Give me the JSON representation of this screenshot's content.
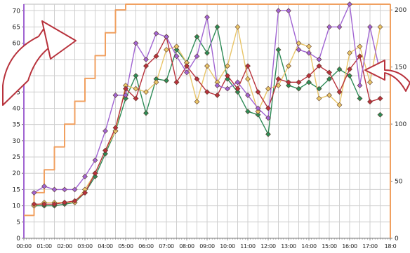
{
  "chart_data": {
    "type": "line",
    "title": "",
    "xlabel": "",
    "ylabel": "",
    "grid": true,
    "categories": [
      "00:00",
      "00:30",
      "01:00",
      "01:30",
      "02:00",
      "02:30",
      "03:00",
      "03:30",
      "04:00",
      "04:30",
      "05:00",
      "05:30",
      "06:00",
      "06:30",
      "07:00",
      "07:30",
      "08:00",
      "08:30",
      "09:00",
      "09:30",
      "10:00",
      "10:30",
      "11:00",
      "11:30",
      "12:00",
      "12:30",
      "13:00",
      "13:30",
      "14:00",
      "14:30",
      "15:00",
      "15:30",
      "16:00",
      "16:30",
      "17:00",
      "17:30",
      "18:00"
    ],
    "x_tick_labels": [
      "00:00",
      "01:00",
      "02:00",
      "03:00",
      "04:00",
      "05:00",
      "06:00",
      "07:00",
      "08:00",
      "09:00",
      "10:00",
      "11:00",
      "12:00",
      "13:00",
      "14:00",
      "15:00",
      "16:00",
      "17:00",
      "18:0"
    ],
    "y_left": {
      "range": [
        0,
        72
      ],
      "ticks": [
        "0",
        "5",
        "10",
        "15",
        "20",
        "25",
        "30",
        "35",
        "40",
        "45",
        "50",
        "55",
        "60",
        "65",
        "70"
      ]
    },
    "y_right": {
      "range": [
        0,
        205
      ],
      "ticks": [
        "0",
        "50",
        "100",
        "150",
        "200"
      ]
    },
    "series": [
      {
        "axis": "left",
        "color": "#2e8b57",
        "marker": true,
        "values": [
          null,
          10,
          10,
          10,
          10.5,
          11,
          14,
          19,
          26,
          33,
          43,
          50,
          38.5,
          49,
          48.5,
          58,
          54,
          62,
          57,
          65,
          49,
          45,
          39,
          38,
          32,
          58,
          47,
          46,
          48,
          46,
          49,
          52,
          50,
          43,
          null,
          38,
          null
        ]
      },
      {
        "axis": "left",
        "color": "#e8c468",
        "marker": true,
        "values": [
          null,
          10,
          11,
          11,
          11,
          11,
          15,
          20,
          27,
          33,
          47,
          46,
          45,
          48,
          58,
          59,
          54,
          42,
          53,
          48,
          53,
          65,
          49,
          39,
          46,
          47,
          53,
          60,
          59,
          43,
          44,
          41,
          57,
          59,
          48,
          65,
          null
        ]
      },
      {
        "axis": "left",
        "color": "#b8323c",
        "marker": true,
        "values": [
          null,
          10.5,
          10.5,
          10.5,
          11,
          11.5,
          14,
          20,
          27,
          34,
          46,
          43,
          53,
          56,
          62,
          48,
          53,
          49,
          45,
          44,
          50,
          46,
          53,
          45,
          40,
          49,
          48,
          48,
          50,
          53,
          51,
          45,
          52,
          56,
          42,
          43,
          null
        ]
      },
      {
        "axis": "left",
        "color": "#a064d2",
        "marker": true,
        "values": [
          null,
          14,
          16,
          15,
          15,
          15,
          19,
          24,
          33,
          44,
          44,
          60,
          55,
          63,
          62,
          56,
          51,
          56,
          68,
          47,
          46,
          48,
          44,
          40,
          37,
          70,
          70,
          58,
          57,
          55,
          65,
          65,
          72,
          47,
          65,
          51,
          null
        ]
      },
      {
        "axis": "right",
        "color": "#f0a060",
        "marker": false,
        "step": true,
        "values": [
          20,
          40,
          60,
          80,
          100,
          120,
          140,
          160,
          180,
          200,
          205,
          205,
          205,
          205,
          205,
          205,
          205,
          205,
          205,
          205,
          205,
          205,
          205,
          205,
          205,
          205,
          205,
          205,
          205,
          205,
          205,
          205,
          205,
          205,
          205,
          205,
          205
        ]
      }
    ]
  }
}
